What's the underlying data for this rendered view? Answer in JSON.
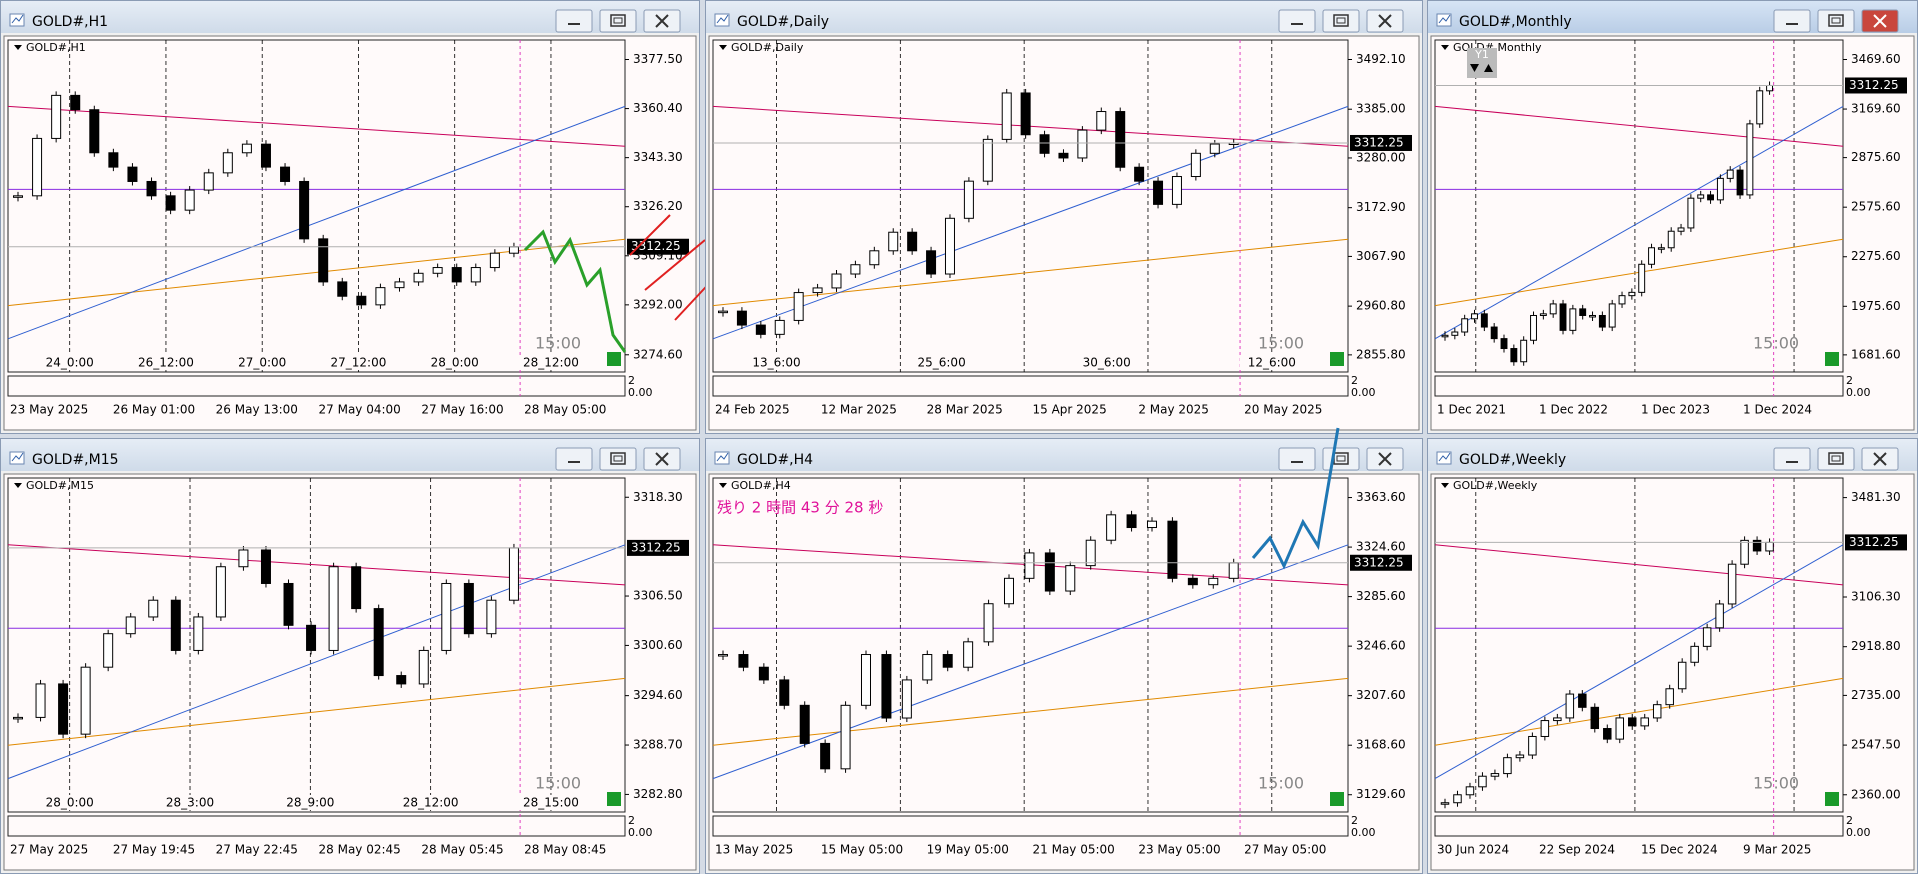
{
  "windows": [
    {
      "title": "GOLD#,H1",
      "price": 3312.25,
      "ylim": [
        3268.6,
        3384.3
      ],
      "yticks": [
        {
          "value": 3377.5,
          "label": "3377.50"
        },
        {
          "value": 3360.4,
          "label": "3360.40"
        },
        {
          "value": 3343.3,
          "label": "3343.30"
        },
        {
          "value": 3326.2,
          "label": "3326.20"
        },
        {
          "value": 3309.1,
          "label": "3309.10"
        },
        {
          "value": 3292,
          "label": "3292.00"
        },
        {
          "value": 3274.6,
          "label": "3274.60"
        }
      ],
      "time_labels": [
        "24_0:00",
        "26_12:00",
        "27_0:00",
        "27_12:00",
        "28_0:00",
        "28_12:00"
      ],
      "date_labels": [
        "23 May 2025",
        "26 May 01:00",
        "26 May 13:00",
        "27 May 04:00",
        "27 May 16:00",
        "28 May 05:00"
      ],
      "countdown": "15:00",
      "sub_labels": [
        "2",
        "0.00"
      ],
      "closes": [
        3330,
        3350,
        3365,
        3360,
        3345,
        3340,
        3335,
        3330,
        3325,
        3332,
        3338,
        3345,
        3348,
        3340,
        3335,
        3315,
        3300,
        3295,
        3292,
        3298,
        3300,
        3303,
        3305,
        3300,
        3305,
        3310,
        3312.25
      ]
    },
    {
      "title": "GOLD#,Daily",
      "price": 3312.25,
      "ylim": [
        2818.9,
        3534.1
      ],
      "yticks": [
        {
          "value": 3492.1,
          "label": "3492.10"
        },
        {
          "value": 3385,
          "label": "3385.00"
        },
        {
          "value": 3280,
          "label": "3280.00"
        },
        {
          "value": 3172.9,
          "label": "3172.90"
        },
        {
          "value": 3067.9,
          "label": "3067.90"
        },
        {
          "value": 2960.8,
          "label": "2960.80"
        },
        {
          "value": 2855.8,
          "label": "2855.80"
        }
      ],
      "time_labels": [
        "13_6:00",
        "25_6:00",
        "30_6:00",
        "12_6:00"
      ],
      "date_labels": [
        "24 Feb 2025",
        "12 Mar 2025",
        "28 Mar 2025",
        "15 Apr 2025",
        "2 May 2025",
        "20 May 2025"
      ],
      "countdown": "15:00",
      "sub_labels": [
        "2",
        "0.00"
      ],
      "closes": [
        2950,
        2920,
        2900,
        2930,
        2990,
        3000,
        3030,
        3050,
        3080,
        3120,
        3080,
        3030,
        3150,
        3230,
        3320,
        3420,
        3330,
        3290,
        3280,
        3340,
        3380,
        3260,
        3230,
        3180,
        3240,
        3290,
        3310,
        3312.25
      ]
    },
    {
      "title": "GOLD#,Monthly",
      "price": 3312.25,
      "ylim": [
        1577.9,
        3587.6
      ],
      "yticks": [
        {
          "value": 3469.6,
          "label": "3469.60"
        },
        {
          "value": 3169.6,
          "label": "3169.60"
        },
        {
          "value": 2875.6,
          "label": "2875.60"
        },
        {
          "value": 2575.6,
          "label": "2575.60"
        },
        {
          "value": 2275.6,
          "label": "2275.60"
        },
        {
          "value": 1975.6,
          "label": "1975.60"
        },
        {
          "value": 1681.6,
          "label": "1681.60"
        }
      ],
      "time_labels": [],
      "date_labels": [
        "1 Dec 2021",
        "1 Dec 2022",
        "1 Dec 2023",
        "1 Dec 2024"
      ],
      "countdown": "15:00",
      "sub_labels": [
        "2",
        "0.00"
      ],
      "button": "Y1",
      "closes": [
        1800,
        1820,
        1900,
        1930,
        1850,
        1780,
        1720,
        1640,
        1770,
        1920,
        1930,
        1990,
        1830,
        1960,
        1920,
        1920,
        1850,
        1990,
        2040,
        2060,
        2230,
        2330,
        2330,
        2430,
        2450,
        2630,
        2650,
        2620,
        2750,
        2800,
        2650,
        3080,
        3280,
        3312.25
      ]
    },
    {
      "title": "GOLD#,M15",
      "price": 3312.25,
      "ylim": [
        3280.7,
        3320.6
      ],
      "yticks": [
        {
          "value": 3318.3,
          "label": "3318.30"
        },
        {
          "value": 3306.5,
          "label": "3306.50"
        },
        {
          "value": 3300.6,
          "label": "3300.60"
        },
        {
          "value": 3294.6,
          "label": "3294.60"
        },
        {
          "value": 3288.7,
          "label": "3288.70"
        },
        {
          "value": 3282.8,
          "label": "3282.80"
        }
      ],
      "time_labels": [
        "28_0:00",
        "28_3:00",
        "28_9:00",
        "28_12:00",
        "28_15:00"
      ],
      "date_labels": [
        "27 May 2025",
        "27 May 19:45",
        "27 May 22:45",
        "28 May 02:45",
        "28 May 05:45",
        "28 May 08:45"
      ],
      "countdown": "15:00",
      "sub_labels": [
        "2",
        "0.00"
      ],
      "closes": [
        3292,
        3296,
        3290,
        3298,
        3302,
        3304,
        3306,
        3300,
        3304,
        3310,
        3312,
        3308,
        3303,
        3300,
        3310,
        3305,
        3297,
        3296,
        3300,
        3308,
        3302,
        3306,
        3312.25
      ]
    },
    {
      "title": "GOLD#,H4",
      "price": 3312.25,
      "ylim": [
        3116.0,
        3379.0
      ],
      "yticks": [
        {
          "value": 3363.6,
          "label": "3363.60"
        },
        {
          "value": 3324.6,
          "label": "3324.60"
        },
        {
          "value": 3285.6,
          "label": "3285.60"
        },
        {
          "value": 3246.6,
          "label": "3246.60"
        },
        {
          "value": 3207.6,
          "label": "3207.60"
        },
        {
          "value": 3168.6,
          "label": "3168.60"
        },
        {
          "value": 3129.6,
          "label": "3129.60"
        }
      ],
      "time_labels": [],
      "date_labels": [
        "13 May 2025",
        "15 May 05:00",
        "19 May 05:00",
        "21 May 05:00",
        "23 May 05:00",
        "27 May 05:00"
      ],
      "countdown": "15:00",
      "sub_labels": [
        "2",
        "0.00"
      ],
      "remaining": "残り 2 時間 43 分 28 秒",
      "closes": [
        3240,
        3230,
        3220,
        3200,
        3170,
        3150,
        3200,
        3240,
        3190,
        3220,
        3240,
        3230,
        3250,
        3280,
        3300,
        3320,
        3290,
        3310,
        3330,
        3350,
        3340,
        3345,
        3300,
        3295,
        3300,
        3312.25
      ]
    },
    {
      "title": "GOLD#,Weekly",
      "price": 3312.25,
      "ylim": [
        2295,
        3555.3
      ],
      "yticks": [
        {
          "value": 3481.3,
          "label": "3481.30"
        },
        {
          "value": 3106.3,
          "label": "3106.30"
        },
        {
          "value": 2918.8,
          "label": "2918.80"
        },
        {
          "value": 2735,
          "label": "2735.00"
        },
        {
          "value": 2547.5,
          "label": "2547.50"
        },
        {
          "value": 2360,
          "label": "2360.00"
        }
      ],
      "time_labels": [],
      "date_labels": [
        "30 Jun 2024",
        "22 Sep 2024",
        "15 Dec 2024",
        "9 Mar 2025"
      ],
      "countdown": "15:00",
      "sub_labels": [
        "2",
        "0.00"
      ],
      "closes": [
        2330,
        2360,
        2390,
        2430,
        2440,
        2500,
        2510,
        2580,
        2640,
        2650,
        2740,
        2690,
        2610,
        2570,
        2650,
        2620,
        2650,
        2700,
        2760,
        2860,
        2920,
        2990,
        3080,
        3230,
        3320,
        3280,
        3312.25
      ]
    }
  ]
}
